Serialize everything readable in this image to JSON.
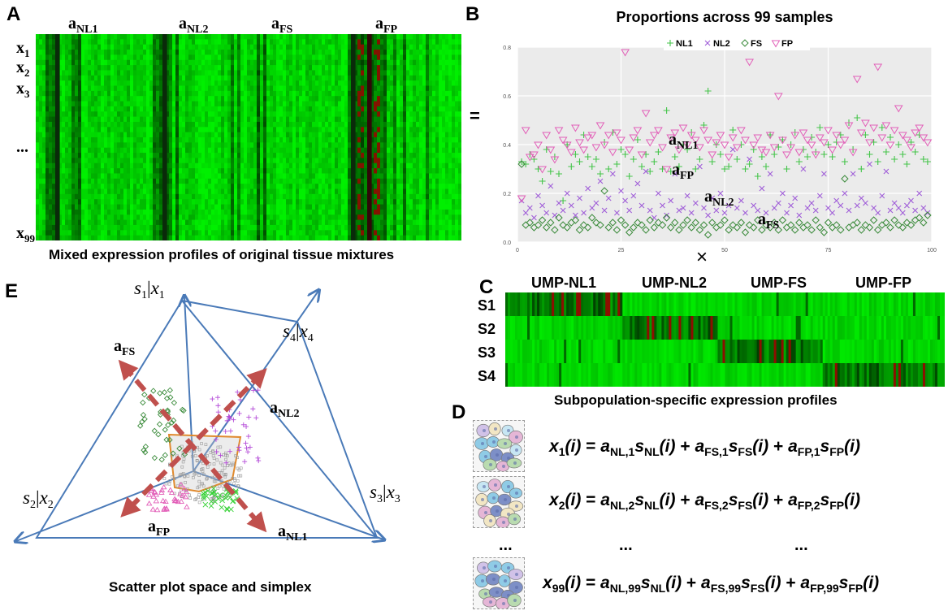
{
  "panels": {
    "A": {
      "letter": "A",
      "column_labels": [
        {
          "main": "a",
          "sub": "NL1"
        },
        {
          "main": "a",
          "sub": "NL2"
        },
        {
          "main": "a",
          "sub": "FS"
        },
        {
          "main": "a",
          "sub": "FP"
        }
      ],
      "row_labels": [
        {
          "main": "x",
          "sub": "1"
        },
        {
          "main": "x",
          "sub": "2"
        },
        {
          "main": "x",
          "sub": "3"
        },
        {
          "main": "...",
          "sub": ""
        },
        {
          "main": "x",
          "sub": "99"
        }
      ],
      "caption": "Mixed expression profiles of original tissue mixtures"
    },
    "B": {
      "letter": "B",
      "equals": "="
    },
    "C": {
      "letter": "C",
      "times": "×",
      "column_labels": [
        "UMP-NL1",
        "UMP-NL2",
        "UMP-FS",
        "UMP-FP"
      ],
      "row_labels": [
        "S1",
        "S2",
        "S3",
        "S4"
      ],
      "caption": "Subpopulation-specific expression profiles"
    },
    "D": {
      "letter": "D",
      "equations": [
        {
          "lhs": "x",
          "lhs_sub": "1",
          "idx": "1"
        },
        {
          "lhs": "x",
          "lhs_sub": "2",
          "idx": "2"
        },
        {
          "lhs": "x",
          "lhs_sub": "99",
          "idx": "99"
        }
      ],
      "ellipsis": "..."
    },
    "E": {
      "letter": "E",
      "axis_labels": [
        {
          "s": "s",
          "s_sub": "1",
          "x": "x",
          "x_sub": "1"
        },
        {
          "s": "s",
          "s_sub": "4",
          "x": "x",
          "x_sub": "4"
        },
        {
          "s": "s",
          "s_sub": "2",
          "x": "x",
          "x_sub": "2"
        },
        {
          "s": "s",
          "s_sub": "3",
          "x": "x",
          "x_sub": "3"
        }
      ],
      "arrow_labels": [
        {
          "main": "a",
          "sub": "FS"
        },
        {
          "main": "a",
          "sub": "NL2"
        },
        {
          "main": "a",
          "sub": "FP"
        },
        {
          "main": "a",
          "sub": "NL1"
        }
      ],
      "caption": "Scatter plot space and simplex"
    }
  },
  "chart_data": {
    "type": "scatter",
    "title": "Proportions across 99 samples",
    "xlabel": "",
    "ylabel": "",
    "xlim": [
      0,
      100
    ],
    "ylim": [
      0,
      0.8
    ],
    "x_ticks": [
      "0",
      "25",
      "50",
      "75",
      "100"
    ],
    "y_ticks": [
      "0.0",
      "0.2",
      "0.4",
      "0.6",
      "0.8"
    ],
    "legend": {
      "placement": "top",
      "entries": [
        "NL1",
        "NL2",
        "FS",
        "FP"
      ]
    },
    "series_annotations": [
      {
        "main": "a",
        "sub": "NL1"
      },
      {
        "main": "a",
        "sub": "FP"
      },
      {
        "main": "a",
        "sub": "NL2"
      },
      {
        "main": "a",
        "sub": "FS"
      }
    ],
    "series": [
      {
        "name": "NL1",
        "color": "#44c44a",
        "marker": "plus",
        "values": [
          0.33,
          0.32,
          0.36,
          0.34,
          0.3,
          0.25,
          0.38,
          0.29,
          0.35,
          0.28,
          0.17,
          0.4,
          0.31,
          0.36,
          0.33,
          0.44,
          0.35,
          0.31,
          0.34,
          0.28,
          0.41,
          0.3,
          0.45,
          0.32,
          0.38,
          0.36,
          0.27,
          0.34,
          0.42,
          0.31,
          0.36,
          0.29,
          0.33,
          0.37,
          0.3,
          0.54,
          0.29,
          0.35,
          0.31,
          0.4,
          0.38,
          0.45,
          0.3,
          0.34,
          0.48,
          0.62,
          0.33,
          0.4,
          0.36,
          0.3,
          0.31,
          0.46,
          0.34,
          0.4,
          0.3,
          0.32,
          0.38,
          0.27,
          0.35,
          0.31,
          0.44,
          0.36,
          0.39,
          0.42,
          0.3,
          0.4,
          0.45,
          0.33,
          0.38,
          0.35,
          0.43,
          0.37,
          0.47,
          0.36,
          0.4,
          0.35,
          0.41,
          0.44,
          0.33,
          0.49,
          0.38,
          0.51,
          0.3,
          0.44,
          0.36,
          0.41,
          0.33,
          0.47,
          0.37,
          0.43,
          0.34,
          0.4,
          0.36,
          0.32,
          0.41,
          0.37,
          0.44,
          0.34,
          0.33
        ]
      },
      {
        "name": "NL2",
        "color": "#a05ed8",
        "marker": "x",
        "values": [
          0.17,
          0.12,
          0.14,
          0.1,
          0.19,
          0.15,
          0.12,
          0.23,
          0.11,
          0.16,
          0.13,
          0.2,
          0.15,
          0.11,
          0.18,
          0.12,
          0.22,
          0.14,
          0.16,
          0.25,
          0.13,
          0.18,
          0.28,
          0.12,
          0.21,
          0.17,
          0.13,
          0.19,
          0.24,
          0.15,
          0.29,
          0.13,
          0.1,
          0.2,
          0.15,
          0.11,
          0.17,
          0.28,
          0.13,
          0.14,
          0.19,
          0.12,
          0.16,
          0.31,
          0.14,
          0.11,
          0.18,
          0.13,
          0.2,
          0.12,
          0.15,
          0.38,
          0.14,
          0.17,
          0.12,
          0.34,
          0.15,
          0.13,
          0.22,
          0.12,
          0.28,
          0.14,
          0.16,
          0.2,
          0.12,
          0.15,
          0.18,
          0.11,
          0.3,
          0.14,
          0.16,
          0.13,
          0.19,
          0.28,
          0.14,
          0.12,
          0.17,
          0.15,
          0.2,
          0.13,
          0.28,
          0.15,
          0.18,
          0.16,
          0.32,
          0.14,
          0.12,
          0.19,
          0.29,
          0.13,
          0.16,
          0.14,
          0.12,
          0.15,
          0.17,
          0.13,
          0.2,
          0.14,
          0.12
        ]
      },
      {
        "name": "FS",
        "color": "#3b8b3b",
        "marker": "diamond",
        "values": [
          0.32,
          0.07,
          0.08,
          0.06,
          0.07,
          0.09,
          0.06,
          0.08,
          0.05,
          0.1,
          0.07,
          0.06,
          0.08,
          0.09,
          0.05,
          0.07,
          0.06,
          0.1,
          0.08,
          0.07,
          0.21,
          0.06,
          0.08,
          0.05,
          0.09,
          0.07,
          0.04,
          0.06,
          0.08,
          0.07,
          0.05,
          0.09,
          0.06,
          0.08,
          0.07,
          0.1,
          0.06,
          0.08,
          0.05,
          0.07,
          0.09,
          0.06,
          0.08,
          0.05,
          0.07,
          0.03,
          0.08,
          0.06,
          0.07,
          0.09,
          0.05,
          0.07,
          0.06,
          0.08,
          0.04,
          0.07,
          0.06,
          0.09,
          0.05,
          0.07,
          0.06,
          0.08,
          0.05,
          0.09,
          0.06,
          0.07,
          0.05,
          0.08,
          0.06,
          0.07,
          0.05,
          0.09,
          0.06,
          0.04,
          0.08,
          0.06,
          0.07,
          0.05,
          0.26,
          0.06,
          0.07,
          0.08,
          0.05,
          0.07,
          0.06,
          0.09,
          0.05,
          0.07,
          0.08,
          0.06,
          0.09,
          0.07,
          0.06,
          0.08,
          0.07,
          0.09,
          0.1,
          0.08,
          0.11
        ]
      },
      {
        "name": "FP",
        "color": "#e25fb8",
        "marker": "triangle-down",
        "values": [
          0.18,
          0.46,
          0.35,
          0.36,
          0.4,
          0.3,
          0.44,
          0.38,
          0.34,
          0.46,
          0.42,
          0.4,
          0.37,
          0.47,
          0.41,
          0.38,
          0.43,
          0.44,
          0.39,
          0.48,
          0.4,
          0.44,
          0.37,
          0.45,
          0.42,
          0.78,
          0.38,
          0.43,
          0.46,
          0.36,
          0.53,
          0.41,
          0.44,
          0.46,
          0.39,
          0.3,
          0.43,
          0.45,
          0.38,
          0.47,
          0.4,
          0.44,
          0.42,
          0.39,
          0.46,
          0.42,
          0.36,
          0.41,
          0.44,
          0.4,
          0.35,
          0.43,
          0.39,
          0.46,
          0.42,
          0.74,
          0.4,
          0.43,
          0.38,
          0.37,
          0.44,
          0.39,
          0.6,
          0.42,
          0.36,
          0.39,
          0.44,
          0.37,
          0.45,
          0.42,
          0.4,
          0.36,
          0.43,
          0.41,
          0.46,
          0.38,
          0.44,
          0.4,
          0.42,
          0.48,
          0.37,
          0.67,
          0.45,
          0.49,
          0.41,
          0.47,
          0.72,
          0.43,
          0.48,
          0.4,
          0.46,
          0.55,
          0.44,
          0.42,
          0.39,
          0.45,
          0.47,
          0.43,
          0.41
        ]
      }
    ]
  }
}
